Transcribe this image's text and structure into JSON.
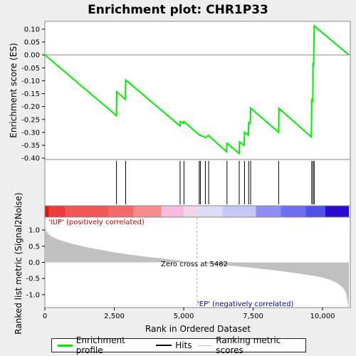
{
  "chart_data": {
    "type": "line",
    "title": "Enrichment plot: CHR1P33",
    "xlabel": "Rank in Ordered Dataset",
    "ylabel_top": "Enrichment score (ES)",
    "ylabel_bottom": "Ranked list metric (Signal2Noise)",
    "x_range": [
      0,
      11000
    ],
    "es_ylim": [
      -0.4,
      0.13
    ],
    "metric_ylim": [
      -1.4,
      1.4
    ],
    "x_ticks": [
      0,
      2500,
      5000,
      7500,
      10000
    ],
    "x_tick_labels": [
      "0",
      "2,500",
      "5,000",
      "7,500",
      "10,000"
    ],
    "es_ticks": [
      0.1,
      0.05,
      0.0,
      -0.05,
      -0.1,
      -0.15,
      -0.2,
      -0.25,
      -0.3,
      -0.35,
      -0.4
    ],
    "es_tick_labels": [
      "0.10",
      "0.05",
      "0.00",
      "-0.05",
      "-0.10",
      "-0.15",
      "-0.20",
      "-0.25",
      "-0.30",
      "-0.35",
      "-0.40"
    ],
    "metric_ticks": [
      1.0,
      0.5,
      0.0,
      -0.5,
      -1.0
    ],
    "metric_tick_labels": [
      "1.0",
      "0.5",
      "0.0",
      "-0.5",
      "-1.0"
    ],
    "enrichment_profile": {
      "name": "Enrichment profile",
      "color": "#00ee00",
      "points": [
        [
          0,
          0.0
        ],
        [
          2580,
          -0.235
        ],
        [
          2590,
          -0.143
        ],
        [
          2900,
          -0.172
        ],
        [
          2910,
          -0.097
        ],
        [
          4870,
          -0.275
        ],
        [
          4880,
          -0.258
        ],
        [
          5000,
          -0.265
        ],
        [
          5010,
          -0.258
        ],
        [
          5580,
          -0.312
        ],
        [
          5600,
          -0.313
        ],
        [
          5620,
          -0.311
        ],
        [
          5650,
          -0.314
        ],
        [
          5800,
          -0.32
        ],
        [
          5820,
          -0.317
        ],
        [
          5900,
          -0.312
        ],
        [
          5910,
          -0.314
        ],
        [
          6550,
          -0.375
        ],
        [
          6560,
          -0.342
        ],
        [
          7000,
          -0.382
        ],
        [
          7010,
          -0.337
        ],
        [
          7180,
          -0.35
        ],
        [
          7190,
          -0.3
        ],
        [
          7330,
          -0.31
        ],
        [
          7340,
          -0.262
        ],
        [
          7400,
          -0.265
        ],
        [
          7410,
          -0.206
        ],
        [
          8420,
          -0.3
        ],
        [
          8430,
          -0.207
        ],
        [
          9600,
          -0.318
        ],
        [
          9610,
          -0.174
        ],
        [
          9650,
          -0.178
        ],
        [
          9660,
          -0.036
        ],
        [
          9680,
          -0.038
        ],
        [
          9700,
          0.112
        ],
        [
          10950,
          0.0
        ]
      ]
    },
    "hits": [
      2580,
      2910,
      4870,
      5010,
      5560,
      5600,
      5780,
      5900,
      6560,
      7000,
      7190,
      7340,
      7410,
      8420,
      9610,
      9660,
      9700
    ],
    "ranking_metric": {
      "name": "Ranking metric scores",
      "color": "#c0c0c0",
      "points": [
        [
          0,
          1.22
        ],
        [
          60,
          0.95
        ],
        [
          200,
          0.82
        ],
        [
          500,
          0.7
        ],
        [
          1000,
          0.57
        ],
        [
          1500,
          0.47
        ],
        [
          2000,
          0.39
        ],
        [
          2500,
          0.31
        ],
        [
          3000,
          0.25
        ],
        [
          3500,
          0.19
        ],
        [
          4000,
          0.14
        ],
        [
          4500,
          0.09
        ],
        [
          5000,
          0.04
        ],
        [
          5482,
          0.0
        ],
        [
          6000,
          -0.05
        ],
        [
          6500,
          -0.09
        ],
        [
          7000,
          -0.13
        ],
        [
          7500,
          -0.17
        ],
        [
          8000,
          -0.22
        ],
        [
          8500,
          -0.27
        ],
        [
          9000,
          -0.33
        ],
        [
          9500,
          -0.39
        ],
        [
          10000,
          -0.47
        ],
        [
          10300,
          -0.55
        ],
        [
          10550,
          -0.65
        ],
        [
          10750,
          -0.8
        ],
        [
          10850,
          -0.95
        ],
        [
          10920,
          -1.3
        ],
        [
          10950,
          -1.38
        ]
      ]
    },
    "color_bar_segments": [
      {
        "from": 0,
        "to": 150,
        "color": "#e51414"
      },
      {
        "from": 150,
        "to": 750,
        "color": "#ee3b3b"
      },
      {
        "from": 750,
        "to": 2300,
        "color": "#f25555"
      },
      {
        "from": 2300,
        "to": 3200,
        "color": "#f46a6a"
      },
      {
        "from": 3200,
        "to": 4200,
        "color": "#f58b8b"
      },
      {
        "from": 4200,
        "to": 5000,
        "color": "#f5bcdf"
      },
      {
        "from": 5000,
        "to": 5500,
        "color": "#f3d3ea"
      },
      {
        "from": 5500,
        "to": 6400,
        "color": "#dcdcf7"
      },
      {
        "from": 6400,
        "to": 7600,
        "color": "#c6c6f7"
      },
      {
        "from": 7600,
        "to": 8500,
        "color": "#8e8ef2"
      },
      {
        "from": 8500,
        "to": 9400,
        "color": "#6e6ef0"
      },
      {
        "from": 9400,
        "to": 10100,
        "color": "#5050ea"
      },
      {
        "from": 10100,
        "to": 10950,
        "color": "#2a0bd4"
      }
    ],
    "annotations": {
      "pos_label": "'IUP' (positively correlated)",
      "neg_label": "'EP' (negatively correlated)",
      "zero_cross": "Zero cross at 5482",
      "zero_cross_x": 5482
    },
    "legend": {
      "placement": "bottom",
      "items": [
        {
          "label": "Enrichment profile",
          "color": "#00ee00"
        },
        {
          "label": "Hits",
          "color": "#000000"
        },
        {
          "label": "Ranking metric scores",
          "color": "#c0c0c0"
        }
      ]
    }
  }
}
